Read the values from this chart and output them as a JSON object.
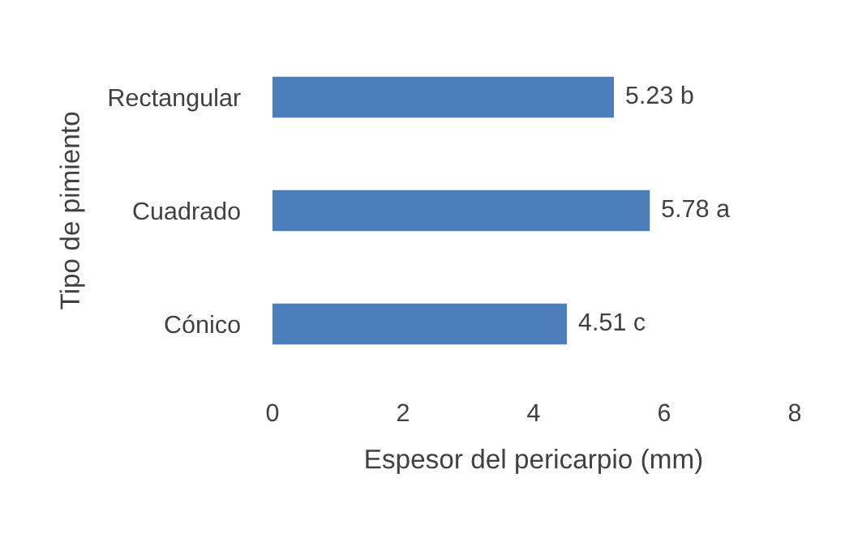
{
  "chart_data": {
    "type": "bar",
    "orientation": "horizontal",
    "xlabel": "Espesor del pericarpio (mm)",
    "ylabel": "Tipo de pimiento",
    "categories": [
      "Rectangular",
      "Cuadrado",
      "Cónico"
    ],
    "values": [
      5.23,
      5.78,
      4.51
    ],
    "value_labels": [
      "5.23 b",
      "5.78 a",
      "4.51 c"
    ],
    "color": "#4a7ebb",
    "xlim": [
      0,
      8
    ],
    "xticks": [
      0,
      2,
      4,
      6,
      8
    ],
    "grid": false,
    "legend": false
  }
}
